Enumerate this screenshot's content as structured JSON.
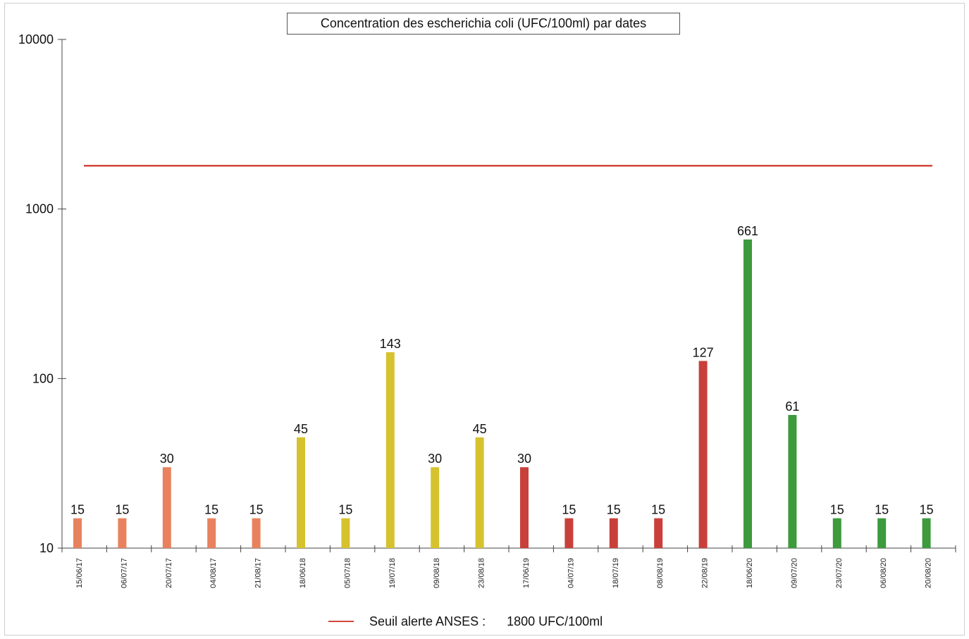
{
  "chart_data": {
    "type": "bar",
    "title": "Concentration des escherichia coli (UFC/100ml)  par dates",
    "y_scale": "log",
    "ylim": [
      10,
      10000
    ],
    "y_ticks": [
      "10",
      "100",
      "1000",
      "10000"
    ],
    "categories": [
      "15/06/17",
      "06/07/17",
      "20/07/17",
      "04/08/17",
      "21/08/17",
      "18/06/18",
      "05/07/18",
      "19/07/18",
      "09/08/18",
      "23/08/18",
      "17/06/19",
      "04/07/19",
      "18/07/19",
      "08/08/19",
      "22/08/19",
      "18/06/20",
      "09/07/20",
      "23/07/20",
      "06/08/20",
      "20/08/20"
    ],
    "values": [
      15,
      15,
      30,
      15,
      15,
      45,
      15,
      143,
      30,
      45,
      30,
      15,
      15,
      15,
      127,
      661,
      61,
      15,
      15,
      15
    ],
    "value_labels": [
      "15",
      "15",
      "30",
      "15",
      "15",
      "45",
      "15",
      "143",
      "30",
      "45",
      "30",
      "15",
      "15",
      "15",
      "127",
      "661",
      "61",
      "15",
      "15",
      "15"
    ],
    "bar_colors": [
      "#e8825e",
      "#e8825e",
      "#e8825e",
      "#e8825e",
      "#e8825e",
      "#d6c22e",
      "#d6c22e",
      "#d6c22e",
      "#d6c22e",
      "#d6c22e",
      "#c9403a",
      "#c9403a",
      "#c9403a",
      "#c9403a",
      "#c9403a",
      "#3d9a3d",
      "#3d9a3d",
      "#3d9a3d",
      "#3d9a3d",
      "#3d9a3d"
    ],
    "threshold": {
      "value": 1800,
      "color": "#d2473a"
    },
    "legend": {
      "label": "Seuil alerte ANSES :",
      "value_text": "1800  UFC/100ml",
      "placement": "bottom-center"
    },
    "grid": false
  }
}
